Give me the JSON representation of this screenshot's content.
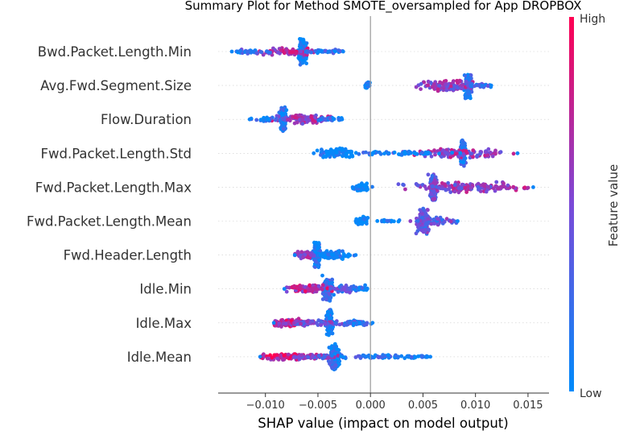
{
  "chart_data": {
    "type": "scatter",
    "subtype": "shap_beeswarm",
    "title": "Summary Plot for Method SMOTE_oversampled for App DROPBOX",
    "xlabel": "SHAP value (impact on model output)",
    "ylabel": "",
    "xlim": [
      -0.0145,
      0.017
    ],
    "xticks": [
      -0.01,
      -0.005,
      0.0,
      0.005,
      0.01,
      0.015
    ],
    "xtick_labels": [
      "−0.010",
      "−0.005",
      "0.000",
      "0.005",
      "0.010",
      "0.015"
    ],
    "zero_line": 0.0,
    "grid": "horizontal-dotted",
    "colorbar": {
      "title": "Feature value",
      "high_label": "High",
      "low_label": "Low",
      "high_color": "#ff0052",
      "mid_color": "#7b4ad8",
      "low_color": "#008bfb"
    },
    "features": [
      {
        "name": "Bwd.Packet.Length.Min",
        "range": [
          -0.0132,
          -0.0026
        ],
        "clusters": [
          {
            "x": -0.0065,
            "weight": 3.0,
            "spread": 0.00015,
            "height": 1.0,
            "value": 0.0
          },
          {
            "x": -0.0082,
            "weight": 1.3,
            "spread": 0.0012,
            "height": 0.3,
            "value": 0.7
          },
          {
            "x": -0.0115,
            "weight": 0.6,
            "spread": 0.001,
            "height": 0.15,
            "value": 0.2
          },
          {
            "x": -0.0045,
            "weight": 0.7,
            "spread": 0.001,
            "height": 0.15,
            "value": 0.15
          }
        ]
      },
      {
        "name": "Avg.Fwd.Segment.Size",
        "range": [
          -0.0005,
          0.0115
        ],
        "clusters": [
          {
            "x": 0.0093,
            "weight": 2.5,
            "spread": 0.00015,
            "height": 1.0,
            "value": 0.1
          },
          {
            "x": 0.0073,
            "weight": 1.8,
            "spread": 0.0013,
            "height": 0.45,
            "value": 0.55
          },
          {
            "x": -0.0003,
            "weight": 0.6,
            "spread": 0.00012,
            "height": 0.25,
            "value": 0.0
          },
          {
            "x": 0.0105,
            "weight": 0.5,
            "spread": 0.0006,
            "height": 0.15,
            "value": 0.2
          }
        ]
      },
      {
        "name": "Flow.Duration",
        "range": [
          -0.0115,
          -0.0027
        ],
        "clusters": [
          {
            "x": -0.0083,
            "weight": 2.4,
            "spread": 0.00012,
            "height": 1.0,
            "value": 0.1
          },
          {
            "x": -0.0065,
            "weight": 1.6,
            "spread": 0.0011,
            "height": 0.35,
            "value": 0.6
          },
          {
            "x": -0.01,
            "weight": 0.5,
            "spread": 0.0007,
            "height": 0.15,
            "value": 0.2
          },
          {
            "x": -0.0038,
            "weight": 0.6,
            "spread": 0.0007,
            "height": 0.15,
            "value": 0.15
          }
        ]
      },
      {
        "name": "Fwd.Packet.Length.Std",
        "range": [
          -0.0054,
          0.014
        ],
        "clusters": [
          {
            "x": 0.0088,
            "weight": 2.4,
            "spread": 0.00012,
            "height": 1.0,
            "value": 0.2
          },
          {
            "x": 0.0082,
            "weight": 2.0,
            "spread": 0.002,
            "height": 0.35,
            "value": 0.6
          },
          {
            "x": -0.003,
            "weight": 1.4,
            "spread": 0.0008,
            "height": 0.4,
            "value": 0.0
          },
          {
            "x": 0.0025,
            "weight": 1.0,
            "spread": 0.0022,
            "height": 0.15,
            "value": 0.05
          }
        ]
      },
      {
        "name": "Fwd.Packet.Length.Max",
        "range": [
          -0.0017,
          0.0155
        ],
        "clusters": [
          {
            "x": 0.006,
            "weight": 2.6,
            "spread": 0.00015,
            "height": 1.0,
            "value": 0.4
          },
          {
            "x": 0.0085,
            "weight": 2.2,
            "spread": 0.0022,
            "height": 0.4,
            "value": 0.55
          },
          {
            "x": -0.0009,
            "weight": 0.8,
            "spread": 0.0003,
            "height": 0.35,
            "value": 0.0
          },
          {
            "x": 0.013,
            "weight": 0.6,
            "spread": 0.0012,
            "height": 0.15,
            "value": 0.7
          }
        ]
      },
      {
        "name": "Fwd.Packet.Length.Mean",
        "range": [
          -0.0014,
          0.0083
        ],
        "clusters": [
          {
            "x": 0.005,
            "weight": 2.4,
            "spread": 0.00025,
            "height": 1.0,
            "value": 0.4
          },
          {
            "x": 0.006,
            "weight": 1.2,
            "spread": 0.001,
            "height": 0.3,
            "value": 0.4
          },
          {
            "x": -0.0008,
            "weight": 0.8,
            "spread": 0.0003,
            "height": 0.35,
            "value": 0.0
          },
          {
            "x": 0.0015,
            "weight": 0.3,
            "spread": 0.0007,
            "height": 0.1,
            "value": 0.0
          }
        ]
      },
      {
        "name": "Fwd.Header.Length",
        "range": [
          -0.0072,
          -0.0014
        ],
        "clusters": [
          {
            "x": -0.0051,
            "weight": 2.6,
            "spread": 0.00015,
            "height": 1.0,
            "value": 0.1
          },
          {
            "x": -0.0035,
            "weight": 1.4,
            "spread": 0.0008,
            "height": 0.35,
            "value": 0.0
          },
          {
            "x": -0.0062,
            "weight": 1.0,
            "spread": 0.0005,
            "height": 0.3,
            "value": 0.6
          }
        ]
      },
      {
        "name": "Idle.Min",
        "range": [
          -0.0082,
          -0.0003
        ],
        "clusters": [
          {
            "x": -0.0041,
            "weight": 2.4,
            "spread": 0.0002,
            "height": 1.0,
            "value": 0.2
          },
          {
            "x": -0.006,
            "weight": 1.4,
            "spread": 0.001,
            "height": 0.3,
            "value": 0.7
          },
          {
            "x": -0.0025,
            "weight": 1.0,
            "spread": 0.0008,
            "height": 0.3,
            "value": 0.3
          },
          {
            "x": -0.0008,
            "weight": 0.3,
            "spread": 0.0004,
            "height": 0.1,
            "value": 0.05
          }
        ]
      },
      {
        "name": "Idle.Max",
        "range": [
          -0.0092,
          0.0002
        ],
        "clusters": [
          {
            "x": -0.0039,
            "weight": 2.4,
            "spread": 0.00015,
            "height": 1.0,
            "value": 0.1
          },
          {
            "x": -0.0078,
            "weight": 1.6,
            "spread": 0.0008,
            "height": 0.35,
            "value": 0.75
          },
          {
            "x": -0.0055,
            "weight": 1.2,
            "spread": 0.001,
            "height": 0.2,
            "value": 0.5
          },
          {
            "x": -0.0015,
            "weight": 0.8,
            "spread": 0.0008,
            "height": 0.2,
            "value": 0.2
          }
        ]
      },
      {
        "name": "Idle.Mean",
        "range": [
          -0.0105,
          0.0057
        ],
        "clusters": [
          {
            "x": -0.0034,
            "weight": 2.6,
            "spread": 0.0002,
            "height": 1.0,
            "value": 0.1
          },
          {
            "x": -0.008,
            "weight": 1.6,
            "spread": 0.0012,
            "height": 0.25,
            "value": 0.8
          },
          {
            "x": -0.0055,
            "weight": 1.0,
            "spread": 0.001,
            "height": 0.2,
            "value": 0.5
          },
          {
            "x": 0.001,
            "weight": 1.0,
            "spread": 0.0018,
            "height": 0.15,
            "value": 0.15
          },
          {
            "x": 0.005,
            "weight": 0.3,
            "spread": 0.0005,
            "height": 0.1,
            "value": 0.05
          }
        ]
      }
    ]
  }
}
